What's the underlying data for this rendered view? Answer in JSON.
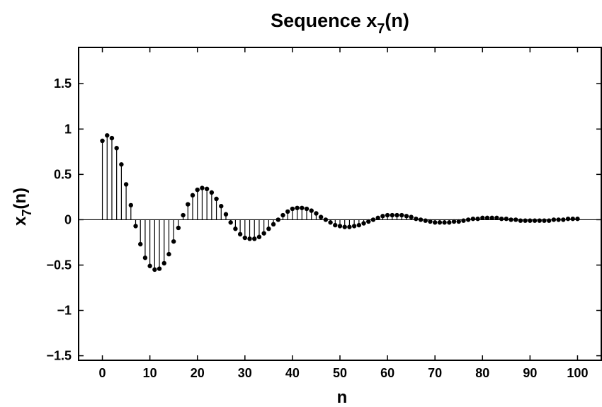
{
  "chart_data": {
    "type": "stem",
    "title": {
      "main": "Sequence x",
      "sub": "7",
      "suffix": "(n)"
    },
    "xlabel": "n",
    "ylabel": {
      "main": "x",
      "sub": "7",
      "suffix": "(n)"
    },
    "xlim": [
      -5,
      105
    ],
    "ylim": [
      -1.55,
      1.9
    ],
    "xticks": [
      0,
      10,
      20,
      30,
      40,
      50,
      60,
      70,
      80,
      90,
      100
    ],
    "xtick_labels": [
      "0",
      "10",
      "20",
      "30",
      "40",
      "50",
      "60",
      "70",
      "80",
      "90",
      "100"
    ],
    "yticks": [
      -1.5,
      -1,
      -0.5,
      0,
      0.5,
      1,
      1.5
    ],
    "ytick_labels": [
      "−1.5",
      "−1",
      "−0.5",
      "0",
      "0.5",
      "1",
      "1.5"
    ],
    "grid": false,
    "n": [
      0,
      1,
      2,
      3,
      4,
      5,
      6,
      7,
      8,
      9,
      10,
      11,
      12,
      13,
      14,
      15,
      16,
      17,
      18,
      19,
      20,
      21,
      22,
      23,
      24,
      25,
      26,
      27,
      28,
      29,
      30,
      31,
      32,
      33,
      34,
      35,
      36,
      37,
      38,
      39,
      40,
      41,
      42,
      43,
      44,
      45,
      46,
      47,
      48,
      49,
      50,
      51,
      52,
      53,
      54,
      55,
      56,
      57,
      58,
      59,
      60,
      61,
      62,
      63,
      64,
      65,
      66,
      67,
      68,
      69,
      70,
      71,
      72,
      73,
      74,
      75,
      76,
      77,
      78,
      79,
      80,
      81,
      82,
      83,
      84,
      85,
      86,
      87,
      88,
      89,
      90,
      91,
      92,
      93,
      94,
      95,
      96,
      97,
      98,
      99,
      100
    ],
    "values": [
      0.87,
      0.93,
      0.9,
      0.79,
      0.61,
      0.39,
      0.16,
      -0.07,
      -0.27,
      -0.42,
      -0.51,
      -0.55,
      -0.54,
      -0.48,
      -0.38,
      -0.24,
      -0.09,
      0.05,
      0.17,
      0.27,
      0.33,
      0.35,
      0.34,
      0.3,
      0.23,
      0.15,
      0.06,
      -0.03,
      -0.1,
      -0.16,
      -0.2,
      -0.21,
      -0.21,
      -0.19,
      -0.15,
      -0.1,
      -0.05,
      0.0,
      0.05,
      0.09,
      0.12,
      0.13,
      0.13,
      0.12,
      0.1,
      0.07,
      0.03,
      0.0,
      -0.03,
      -0.06,
      -0.07,
      -0.08,
      -0.08,
      -0.07,
      -0.06,
      -0.04,
      -0.02,
      0.0,
      0.02,
      0.04,
      0.05,
      0.05,
      0.05,
      0.05,
      0.04,
      0.03,
      0.01,
      0.0,
      -0.01,
      -0.02,
      -0.03,
      -0.03,
      -0.03,
      -0.03,
      -0.02,
      -0.02,
      -0.01,
      0.0,
      0.01,
      0.01,
      0.02,
      0.02,
      0.02,
      0.02,
      0.01,
      0.01,
      0.0,
      0.0,
      -0.01,
      -0.01,
      -0.01,
      -0.01,
      -0.01,
      -0.01,
      -0.01,
      0.0,
      0.0,
      0.0,
      0.01,
      0.01,
      0.01
    ]
  }
}
